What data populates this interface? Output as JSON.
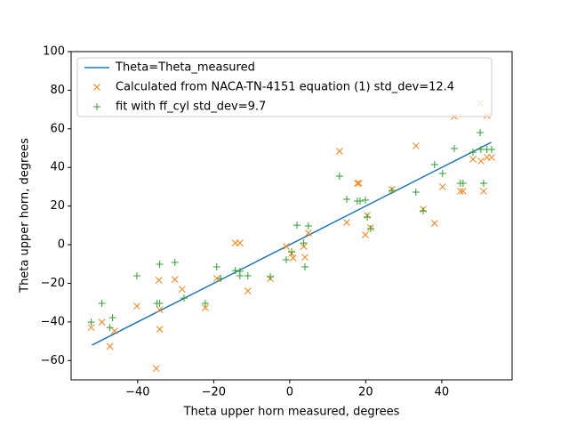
{
  "chart_data": {
    "type": "scatter",
    "x_label": "Theta upper horn measured, degrees",
    "y_label": "Theta upper horn, degrees",
    "xlim": [
      -57.5,
      58.5
    ],
    "ylim": [
      -70,
      100
    ],
    "xticks": [
      {
        "value": -40,
        "label": "−40"
      },
      {
        "value": -20,
        "label": "−20"
      },
      0,
      20,
      40
    ],
    "yticks": [
      {
        "value": -60,
        "label": "−60"
      },
      {
        "value": -40,
        "label": "−40"
      },
      {
        "value": -20,
        "label": "−20"
      },
      0,
      20,
      40,
      60,
      80,
      100
    ],
    "legend": "upper left",
    "series": [
      {
        "name": "Theta=Theta_measured",
        "kind": "line",
        "color": "#1f77b4",
        "x": [
          -52,
          53
        ],
        "values": [
          -52,
          53
        ]
      },
      {
        "name": "Calculated from NACA-TN-4151 equation (1) std_dev=12.4",
        "kind": "x",
        "color": "#ff7f0e",
        "x": [
          -52.2,
          -49.4,
          -47.3,
          -46.1,
          -40.2,
          -35.1,
          -34.4,
          -34.2,
          -34.2,
          -30.2,
          -28.3,
          -22.2,
          -19.2,
          -14.3,
          -13.1,
          -11.0,
          -5.1,
          -0.9,
          0.5,
          0.9,
          3.7,
          4.0,
          4.9,
          13.1,
          15.0,
          17.8,
          18.2,
          19.9,
          20.4,
          21.3,
          26.9,
          33.2,
          35.1,
          38.1,
          40.2,
          43.3,
          44.9,
          45.6,
          48.2,
          50.1,
          50.3,
          51.0,
          51.9,
          51.9,
          53.1
        ],
        "values": [
          -42.9,
          -40.1,
          -52.6,
          -44.7,
          -31.8,
          -64.1,
          -18.4,
          -33.7,
          -43.8,
          -18.0,
          -23.1,
          -32.7,
          -17.5,
          0.9,
          0.9,
          -24.0,
          -17.5,
          -0.9,
          -4.6,
          -6.9,
          -0.9,
          -6.5,
          6.0,
          48.4,
          11.5,
          31.8,
          31.8,
          5.1,
          15.2,
          8.8,
          28.6,
          51.2,
          18.4,
          11.1,
          30.0,
          66.4,
          27.7,
          27.7,
          44.3,
          73.3,
          43.3,
          27.7,
          66.9,
          45.2,
          45.2
        ]
      },
      {
        "name": "fit with ff_cyl std_dev=9.7",
        "kind": "plus",
        "color": "#2ca02c",
        "x": [
          -52.2,
          -49.4,
          -47.3,
          -46.6,
          -40.2,
          -34.9,
          -34.2,
          -34.2,
          -30.2,
          -27.8,
          -22.2,
          -19.2,
          -18.2,
          -14.3,
          -13.1,
          -13.1,
          -11.0,
          -5.1,
          -0.9,
          0.5,
          1.9,
          3.7,
          4.0,
          4.9,
          13.1,
          15.0,
          17.8,
          18.5,
          19.9,
          20.4,
          21.3,
          26.9,
          33.2,
          35.1,
          38.1,
          40.2,
          43.3,
          44.9,
          45.6,
          48.2,
          50.1,
          50.3,
          51.0,
          51.9,
          53.1
        ],
        "values": [
          -40.1,
          -30.4,
          -42.9,
          -37.8,
          -16.1,
          -30.4,
          -30.4,
          -10.1,
          -9.2,
          -27.7,
          -30.4,
          -11.5,
          -17.5,
          -13.4,
          -16.1,
          -13.8,
          -16.1,
          -16.6,
          -7.8,
          -3.7,
          10.1,
          0.9,
          -11.5,
          9.7,
          35.5,
          23.5,
          22.6,
          22.6,
          23.1,
          14.3,
          8.3,
          28.1,
          27.2,
          17.5,
          41.5,
          36.9,
          49.8,
          31.8,
          31.8,
          47.9,
          58.1,
          49.3,
          31.8,
          49.3,
          49.3
        ]
      }
    ]
  }
}
